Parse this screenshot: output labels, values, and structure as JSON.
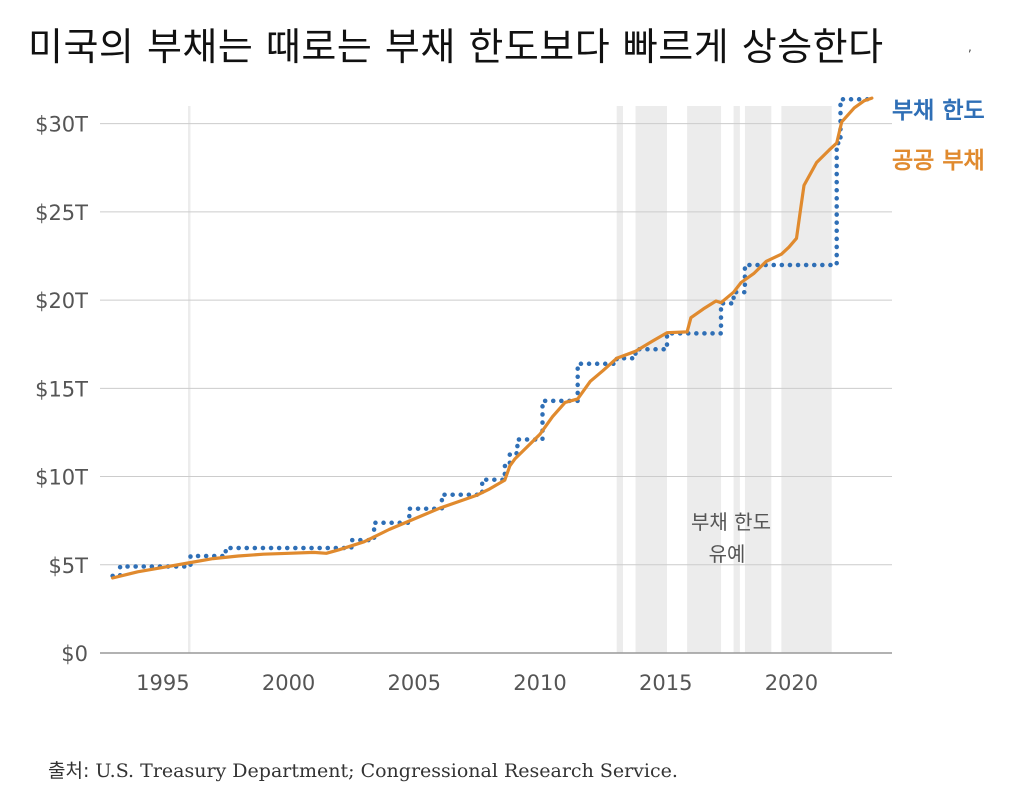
{
  "chart_data": {
    "type": "line",
    "title": "미국의 부채는 때로는 부채 한도보다 빠르게 상승한다",
    "title_mark": ",",
    "source_label": "출처:",
    "source_text": " U.S. Treasury Department; Congressional Research Service.",
    "xlim": [
      1992.5,
      2024.0
    ],
    "ylim": [
      0,
      31
    ],
    "x_ticks": [
      1995,
      2000,
      2005,
      2010,
      2015,
      2020
    ],
    "x_tick_labels": [
      "1995",
      "2000",
      "2005",
      "2010",
      "2015",
      "2020"
    ],
    "y_ticks": [
      0,
      5,
      10,
      15,
      20,
      25,
      30
    ],
    "y_tick_labels": [
      "$0",
      "$5T",
      "$10T",
      "$15T",
      "$20T",
      "$25T",
      "$30T"
    ],
    "grid": true,
    "suspension_label_line1": "부채 한도",
    "suspension_label_line2": "유예",
    "suspension_periods": [
      [
        1996.0,
        1996.1
      ],
      [
        2013.05,
        2013.3
      ],
      [
        2013.8,
        2015.05
      ],
      [
        2015.85,
        2017.2
      ],
      [
        2017.7,
        2017.95
      ],
      [
        2018.15,
        2019.2
      ],
      [
        2019.6,
        2021.6
      ]
    ],
    "colors": {
      "debt_limit": "#2f6fb6",
      "public_debt": "#e08a2e",
      "grid": "#cccccc",
      "band": "#ececec",
      "axis": "#999999",
      "text": "#555555"
    },
    "series": [
      {
        "name": "부채 한도",
        "style": "dotted-step",
        "points": [
          [
            1993.0,
            4.37
          ],
          [
            1993.3,
            4.37
          ],
          [
            1993.3,
            4.9
          ],
          [
            1996.1,
            4.9
          ],
          [
            1996.1,
            5.5
          ],
          [
            1997.5,
            5.5
          ],
          [
            1997.5,
            5.95
          ],
          [
            2002.5,
            5.95
          ],
          [
            2002.5,
            6.4
          ],
          [
            2003.4,
            6.4
          ],
          [
            2003.4,
            7.38
          ],
          [
            2004.8,
            7.38
          ],
          [
            2004.8,
            8.18
          ],
          [
            2006.1,
            8.18
          ],
          [
            2006.1,
            8.97
          ],
          [
            2007.7,
            8.97
          ],
          [
            2007.7,
            9.82
          ],
          [
            2008.6,
            9.82
          ],
          [
            2008.6,
            10.6
          ],
          [
            2008.8,
            10.6
          ],
          [
            2008.8,
            11.32
          ],
          [
            2009.1,
            11.32
          ],
          [
            2009.1,
            12.1
          ],
          [
            2010.1,
            12.1
          ],
          [
            2010.1,
            14.29
          ],
          [
            2011.5,
            14.29
          ],
          [
            2011.5,
            16.39
          ],
          [
            2013.05,
            16.39
          ],
          [
            2013.05,
            16.7
          ],
          [
            2013.8,
            16.7
          ],
          [
            2013.8,
            17.21
          ],
          [
            2015.05,
            17.21
          ],
          [
            2015.05,
            18.11
          ],
          [
            2017.2,
            18.11
          ],
          [
            2017.2,
            19.81
          ],
          [
            2017.7,
            19.81
          ],
          [
            2017.7,
            20.45
          ],
          [
            2018.15,
            20.45
          ],
          [
            2018.15,
            21.99
          ],
          [
            2021.8,
            21.99
          ],
          [
            2021.8,
            28.9
          ],
          [
            2021.95,
            28.9
          ],
          [
            2021.95,
            31.38
          ],
          [
            2023.2,
            31.38
          ]
        ]
      },
      {
        "name": "공공 부채",
        "style": "solid",
        "points": [
          [
            1993.0,
            4.25
          ],
          [
            1994.0,
            4.6
          ],
          [
            1995.0,
            4.85
          ],
          [
            1996.0,
            5.1
          ],
          [
            1997.0,
            5.35
          ],
          [
            1998.0,
            5.5
          ],
          [
            1999.0,
            5.6
          ],
          [
            2000.0,
            5.65
          ],
          [
            2001.0,
            5.7
          ],
          [
            2001.5,
            5.65
          ],
          [
            2002.0,
            5.85
          ],
          [
            2003.0,
            6.3
          ],
          [
            2004.0,
            7.0
          ],
          [
            2005.0,
            7.6
          ],
          [
            2006.0,
            8.2
          ],
          [
            2007.0,
            8.7
          ],
          [
            2007.5,
            8.95
          ],
          [
            2008.0,
            9.3
          ],
          [
            2008.6,
            9.8
          ],
          [
            2008.8,
            10.6
          ],
          [
            2009.0,
            11.0
          ],
          [
            2009.5,
            11.7
          ],
          [
            2010.0,
            12.4
          ],
          [
            2010.5,
            13.4
          ],
          [
            2011.0,
            14.2
          ],
          [
            2011.5,
            14.4
          ],
          [
            2012.0,
            15.4
          ],
          [
            2012.5,
            16.0
          ],
          [
            2013.05,
            16.7
          ],
          [
            2013.8,
            17.1
          ],
          [
            2014.5,
            17.7
          ],
          [
            2015.05,
            18.15
          ],
          [
            2015.85,
            18.2
          ],
          [
            2016.0,
            19.0
          ],
          [
            2016.5,
            19.5
          ],
          [
            2017.0,
            19.95
          ],
          [
            2017.2,
            19.85
          ],
          [
            2017.7,
            20.45
          ],
          [
            2018.0,
            21.0
          ],
          [
            2018.5,
            21.5
          ],
          [
            2019.0,
            22.2
          ],
          [
            2019.6,
            22.6
          ],
          [
            2019.9,
            23.0
          ],
          [
            2020.2,
            23.5
          ],
          [
            2020.35,
            25.0
          ],
          [
            2020.5,
            26.5
          ],
          [
            2021.0,
            27.8
          ],
          [
            2021.5,
            28.5
          ],
          [
            2021.8,
            28.9
          ],
          [
            2022.0,
            30.1
          ],
          [
            2022.5,
            30.9
          ],
          [
            2022.9,
            31.3
          ],
          [
            2023.2,
            31.45
          ]
        ]
      }
    ],
    "legend": [
      {
        "label": "부채 한도",
        "color": "#2f6fb6"
      },
      {
        "label": "공공 부채",
        "color": "#e08a2e"
      }
    ]
  }
}
